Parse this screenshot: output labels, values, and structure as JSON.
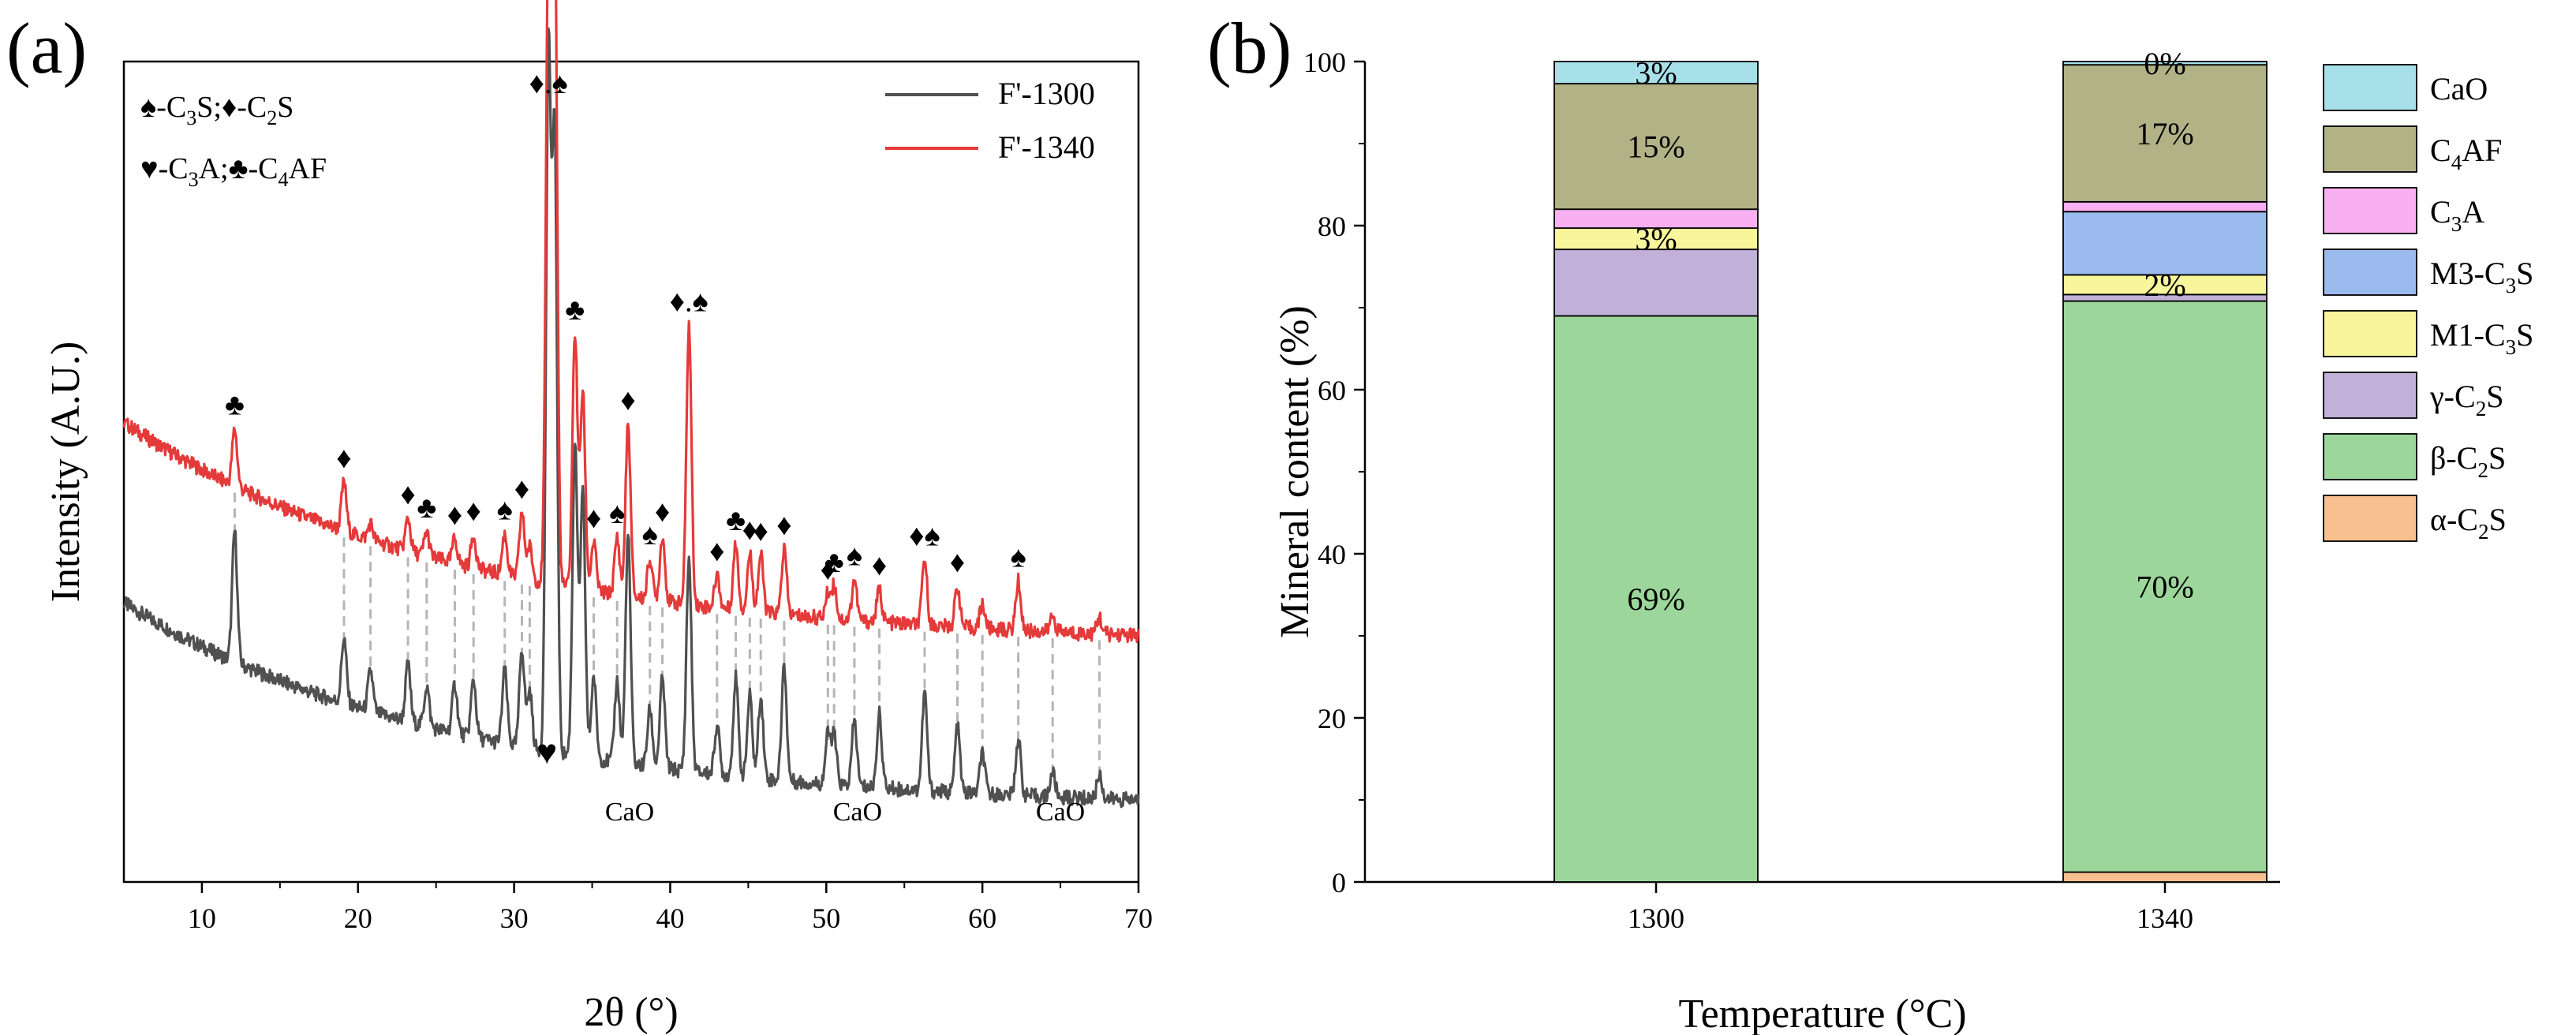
{
  "chart_data": [
    {
      "panel_label": "(a)",
      "type": "line",
      "xlabel": "2θ (°)",
      "ylabel": "Intensity (A.U.)",
      "xlim": [
        5,
        70
      ],
      "x_ticks": [
        10,
        20,
        30,
        40,
        50,
        60,
        70
      ],
      "y_ticks_shown": false,
      "legend_position": "top-right",
      "symbol_key": [
        {
          "line": 1,
          "parts": [
            {
              "sym": "♠",
              "name": "C",
              "sub": "3",
              "rest": "S"
            },
            {
              "sym": "♦",
              "name": "C",
              "sub": "2",
              "rest": "S",
              "sep": ";"
            }
          ]
        },
        {
          "line": 2,
          "parts": [
            {
              "sym": "♥",
              "name": "C",
              "sub": "3",
              "rest": "A"
            },
            {
              "sym": "♣",
              "name": "C",
              "sub": "4",
              "rest": "AF",
              "sep": ";"
            }
          ]
        }
      ],
      "series": [
        {
          "name": "F'-1300",
          "color": "#505050",
          "start_level": 0.34,
          "end_level": 0.1
        },
        {
          "name": "F'-1340",
          "color": "#e53a3a",
          "start_level": 0.56,
          "end_level": 0.3
        }
      ],
      "peaks": [
        {
          "x": 12.1,
          "h1300": 0.16,
          "h1340": 0.07,
          "label": "♣"
        },
        {
          "x": 19.1,
          "h1300": 0.08,
          "h1340": 0.06,
          "label": "♦"
        },
        {
          "x": 20.8,
          "h1300": 0.05,
          "h1340": 0.02,
          "label": ""
        },
        {
          "x": 23.2,
          "h1300": 0.07,
          "h1340": 0.04,
          "label": "♦"
        },
        {
          "x": 24.4,
          "h1300": 0.05,
          "h1340": 0.03,
          "label": "♣"
        },
        {
          "x": 26.2,
          "h1300": 0.06,
          "h1340": 0.03,
          "label": "♦"
        },
        {
          "x": 27.4,
          "h1300": 0.07,
          "h1340": 0.04,
          "label": "♦"
        },
        {
          "x": 29.4,
          "h1300": 0.09,
          "h1340": 0.05,
          "label": "♠"
        },
        {
          "x": 30.5,
          "h1300": 0.12,
          "h1340": 0.08,
          "label": "♦"
        },
        {
          "x": 31.0,
          "h1300": 0.07,
          "h1340": 0.04,
          "label": ""
        },
        {
          "x": 32.2,
          "h1300": 0.84,
          "h1340": 0.79,
          "label": "♦.♠"
        },
        {
          "x": 32.6,
          "h1300": 0.74,
          "h1340": 0.82,
          "label": ""
        },
        {
          "x": 33.9,
          "h1300": 0.38,
          "h1340": 0.31,
          "label": "♣"
        },
        {
          "x": 34.4,
          "h1300": 0.32,
          "h1340": 0.24,
          "label": ""
        },
        {
          "x": 35.1,
          "h1300": 0.1,
          "h1340": 0.06,
          "label": "♦"
        },
        {
          "x": 36.6,
          "h1300": 0.1,
          "h1340": 0.07,
          "label": "♠"
        },
        {
          "x": 37.3,
          "h1300": 0.28,
          "h1340": 0.21,
          "label": "♦"
        },
        {
          "x": 38.7,
          "h1300": 0.07,
          "h1340": 0.05,
          "label": "♠"
        },
        {
          "x": 39.5,
          "h1300": 0.11,
          "h1340": 0.08,
          "label": "♦"
        },
        {
          "x": 41.2,
          "h1300": 0.26,
          "h1340": 0.34,
          "label": "♦.♠"
        },
        {
          "x": 43.0,
          "h1300": 0.06,
          "h1340": 0.04,
          "label": "♦"
        },
        {
          "x": 44.2,
          "h1300": 0.12,
          "h1340": 0.08,
          "label": "♣"
        },
        {
          "x": 45.1,
          "h1300": 0.1,
          "h1340": 0.07,
          "label": "♦"
        },
        {
          "x": 45.8,
          "h1300": 0.1,
          "h1340": 0.07,
          "label": "♦"
        },
        {
          "x": 47.3,
          "h1300": 0.14,
          "h1340": 0.08,
          "label": "♦"
        },
        {
          "x": 50.1,
          "h1300": 0.06,
          "h1340": 0.03,
          "label": "♦"
        },
        {
          "x": 50.5,
          "h1300": 0.06,
          "h1340": 0.04,
          "label": "♣"
        },
        {
          "x": 51.8,
          "h1300": 0.08,
          "h1340": 0.05,
          "label": "♠"
        },
        {
          "x": 53.4,
          "h1300": 0.09,
          "h1340": 0.04,
          "label": "♦"
        },
        {
          "x": 56.3,
          "h1300": 0.12,
          "h1340": 0.08,
          "label": "♦♠"
        },
        {
          "x": 58.4,
          "h1300": 0.08,
          "h1340": 0.05,
          "label": "♦"
        },
        {
          "x": 60.0,
          "h1300": 0.05,
          "h1340": 0.03,
          "label": ""
        },
        {
          "x": 62.3,
          "h1300": 0.07,
          "h1340": 0.06,
          "label": "♠"
        },
        {
          "x": 64.5,
          "h1300": 0.03,
          "h1340": 0.02,
          "label": ""
        },
        {
          "x": 67.5,
          "h1300": 0.03,
          "h1340": 0.02,
          "label": ""
        }
      ],
      "annotations": [
        {
          "text": "♥",
          "x": 32.1
        },
        {
          "text": "CaO",
          "x": 37.4
        },
        {
          "text": "CaO",
          "x": 52.0
        },
        {
          "text": "CaO",
          "x": 65.0
        }
      ]
    },
    {
      "panel_label": "(b)",
      "type": "bar",
      "stacked": true,
      "xlabel": "Temperature (°C)",
      "ylabel": "Mineral content (%)",
      "categories": [
        "1300",
        "1340"
      ],
      "ylim": [
        0,
        100
      ],
      "y_ticks": [
        0,
        20,
        40,
        60,
        80,
        100
      ],
      "legend_position": "right",
      "series": [
        {
          "name": "α-C₂S",
          "label": {
            "pre": "α-C",
            "sub": "2",
            "post": "S"
          },
          "color": "#f9c08f",
          "values": [
            0,
            1.2
          ],
          "labels": [
            "",
            ""
          ]
        },
        {
          "name": "β-C₂S",
          "label": {
            "pre": "β-C",
            "sub": "2",
            "post": "S"
          },
          "color": "#9cd69a",
          "values": [
            69,
            69.6
          ],
          "labels": [
            "69%",
            "70%"
          ]
        },
        {
          "name": "γ-C₂S",
          "label": {
            "pre": "γ-C",
            "sub": "2",
            "post": "S"
          },
          "color": "#c1b1d8",
          "values": [
            8.1,
            0.8
          ],
          "labels": [
            "",
            ""
          ]
        },
        {
          "name": "M1-C₃S",
          "label": {
            "pre": "M1-C",
            "sub": "3",
            "post": "S"
          },
          "color": "#f8f59a",
          "values": [
            2.6,
            2.4
          ],
          "labels": [
            "3%",
            "2%"
          ]
        },
        {
          "name": "M3-C₃S",
          "label": {
            "pre": "M3-C",
            "sub": "3",
            "post": "S"
          },
          "color": "#9bbbef",
          "values": [
            0,
            7.7
          ],
          "labels": [
            "",
            ""
          ]
        },
        {
          "name": "C₃A",
          "label": {
            "pre": "C",
            "sub": "3",
            "post": "A"
          },
          "color": "#f9b0f2",
          "values": [
            2.3,
            1.2
          ],
          "labels": [
            "",
            ""
          ]
        },
        {
          "name": "C₄AF",
          "label": {
            "pre": "C",
            "sub": "4",
            "post": "AF"
          },
          "color": "#b2b287",
          "values": [
            15.3,
            16.7
          ],
          "labels": [
            "15%",
            "17%"
          ]
        },
        {
          "name": "CaO",
          "label": {
            "pre": "CaO",
            "sub": "",
            "post": ""
          },
          "color": "#a8e0ea",
          "values": [
            2.7,
            0.4
          ],
          "labels": [
            "3%",
            "0%"
          ]
        }
      ]
    }
  ]
}
